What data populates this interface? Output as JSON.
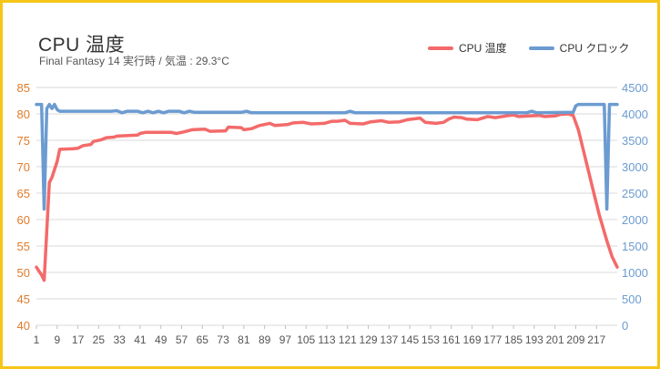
{
  "colors": {
    "frame": "#f5c518",
    "temp": "#f46a6a",
    "clock": "#6b9bd1",
    "left_axis_text": "#e07b2a",
    "right_axis_text": "#6b9bd1",
    "grid": "#d9d9d9"
  },
  "chart_data": {
    "type": "line",
    "title": "CPU 温度",
    "subtitle": "Final Fantasy 14 実行時 / 気温 : 29.3°C",
    "legend_position": "top-right",
    "grid": true,
    "x": {
      "min": 1,
      "max": 225,
      "tick_labels": [
        "1",
        "9",
        "17",
        "25",
        "33",
        "41",
        "49",
        "57",
        "65",
        "73",
        "81",
        "89",
        "97",
        "105",
        "113",
        "121",
        "129",
        "137",
        "145",
        "153",
        "161",
        "169",
        "177",
        "185",
        "193",
        "201",
        "209",
        "217"
      ]
    },
    "y_left": {
      "min": 40,
      "max": 85,
      "ticks": [
        40,
        45,
        50,
        55,
        60,
        65,
        70,
        75,
        80,
        85
      ]
    },
    "y_right": {
      "min": 0,
      "max": 4500,
      "ticks": [
        0,
        500,
        1000,
        1500,
        2000,
        2500,
        3000,
        3500,
        4000,
        4500
      ]
    },
    "series": [
      {
        "name": "CPU 温度",
        "axis": "left",
        "color": "#f46a6a",
        "points": [
          [
            1,
            51
          ],
          [
            3,
            49.5
          ],
          [
            4,
            48.5
          ],
          [
            6,
            67
          ],
          [
            7,
            68
          ],
          [
            9,
            71
          ],
          [
            10,
            73.3
          ],
          [
            15,
            73.4
          ],
          [
            17,
            73.5
          ],
          [
            19,
            74
          ],
          [
            22,
            74.2
          ],
          [
            23,
            74.8
          ],
          [
            26,
            75.1
          ],
          [
            28,
            75.5
          ],
          [
            31,
            75.6
          ],
          [
            32,
            75.8
          ],
          [
            40,
            76
          ],
          [
            41,
            76.3
          ],
          [
            43,
            76.5
          ],
          [
            53,
            76.5
          ],
          [
            55,
            76.3
          ],
          [
            58,
            76.6
          ],
          [
            61,
            77
          ],
          [
            66,
            77.1
          ],
          [
            68,
            76.7
          ],
          [
            74,
            76.8
          ],
          [
            75,
            77.5
          ],
          [
            80,
            77.4
          ],
          [
            81,
            77
          ],
          [
            84,
            77.2
          ],
          [
            87,
            77.8
          ],
          [
            91,
            78.2
          ],
          [
            93,
            77.8
          ],
          [
            98,
            78
          ],
          [
            100,
            78.3
          ],
          [
            104,
            78.4
          ],
          [
            107,
            78.1
          ],
          [
            112,
            78.2
          ],
          [
            115,
            78.6
          ],
          [
            117,
            78.6
          ],
          [
            120,
            78.8
          ],
          [
            122,
            78.2
          ],
          [
            127,
            78.1
          ],
          [
            130,
            78.5
          ],
          [
            134,
            78.7
          ],
          [
            137,
            78.4
          ],
          [
            141,
            78.5
          ],
          [
            144,
            78.9
          ],
          [
            149,
            79.2
          ],
          [
            151,
            78.4
          ],
          [
            155,
            78.2
          ],
          [
            158,
            78.4
          ],
          [
            160,
            79
          ],
          [
            162,
            79.4
          ],
          [
            165,
            79.3
          ],
          [
            167,
            79
          ],
          [
            171,
            78.9
          ],
          [
            175,
            79.5
          ],
          [
            178,
            79.3
          ],
          [
            182,
            79.6
          ],
          [
            185,
            79.8
          ],
          [
            187,
            79.5
          ],
          [
            191,
            79.6
          ],
          [
            195,
            79.7
          ],
          [
            197,
            79.5
          ],
          [
            201,
            79.6
          ],
          [
            203,
            79.9
          ],
          [
            206,
            80
          ],
          [
            208,
            79.7
          ],
          [
            210,
            77
          ],
          [
            212,
            73
          ],
          [
            215,
            67
          ],
          [
            218,
            61
          ],
          [
            221,
            56
          ],
          [
            223,
            53
          ],
          [
            225,
            51
          ]
        ]
      },
      {
        "name": "CPU クロック",
        "axis": "right",
        "color": "#6b9bd1",
        "points": [
          [
            1,
            4180
          ],
          [
            2,
            4180
          ],
          [
            3,
            4180
          ],
          [
            4,
            2200
          ],
          [
            5,
            4100
          ],
          [
            6,
            4180
          ],
          [
            7,
            4100
          ],
          [
            8,
            4180
          ],
          [
            9,
            4080
          ],
          [
            10,
            4050
          ],
          [
            30,
            4050
          ],
          [
            32,
            4060
          ],
          [
            34,
            4020
          ],
          [
            36,
            4050
          ],
          [
            40,
            4050
          ],
          [
            42,
            4020
          ],
          [
            44,
            4050
          ],
          [
            46,
            4020
          ],
          [
            48,
            4050
          ],
          [
            50,
            4020
          ],
          [
            52,
            4050
          ],
          [
            56,
            4050
          ],
          [
            58,
            4020
          ],
          [
            60,
            4050
          ],
          [
            62,
            4030
          ],
          [
            80,
            4030
          ],
          [
            82,
            4050
          ],
          [
            84,
            4020
          ],
          [
            120,
            4020
          ],
          [
            122,
            4050
          ],
          [
            124,
            4020
          ],
          [
            190,
            4020
          ],
          [
            192,
            4050
          ],
          [
            194,
            4020
          ],
          [
            208,
            4030
          ],
          [
            209,
            4150
          ],
          [
            210,
            4180
          ],
          [
            220,
            4180
          ],
          [
            221,
            2200
          ],
          [
            222,
            4180
          ],
          [
            225,
            4180
          ]
        ]
      }
    ]
  }
}
